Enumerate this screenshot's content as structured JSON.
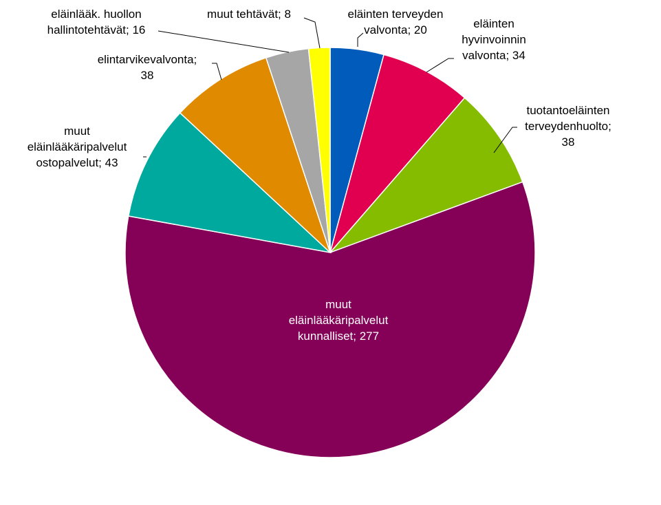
{
  "chart_data": {
    "type": "pie",
    "title": "",
    "slices": [
      {
        "label_lines": [
          "eläinten terveyden",
          "valvonta; 20"
        ],
        "value": 20,
        "color": "#005BBB"
      },
      {
        "label_lines": [
          "eläinten",
          "hyvinvoinnin",
          "valvonta; 34"
        ],
        "value": 34,
        "color": "#E0004F"
      },
      {
        "label_lines": [
          "tuotantoeläinten",
          "terveydenhuolto;",
          "38"
        ],
        "value": 38,
        "color": "#85BC00"
      },
      {
        "label_lines": [
          "muut",
          "eläinlääkäripalvelut",
          "kunnalliset; 277"
        ],
        "value": 277,
        "color": "#850057"
      },
      {
        "label_lines": [
          "muut",
          "eläinlääkäripalvelut",
          "ostopalvelut; 43"
        ],
        "value": 43,
        "color": "#00A99D"
      },
      {
        "label_lines": [
          "elintarvikevalvonta;",
          "38"
        ],
        "value": 38,
        "color": "#E08A00"
      },
      {
        "label_lines": [
          "eläinlääk. huollon",
          "hallintotehtävät; 16"
        ],
        "value": 16,
        "color": "#A6A6A6"
      },
      {
        "label_lines": [
          "muut tehtävät; 8"
        ],
        "value": 8,
        "color": "#FFFF00"
      }
    ],
    "legend": "none"
  }
}
